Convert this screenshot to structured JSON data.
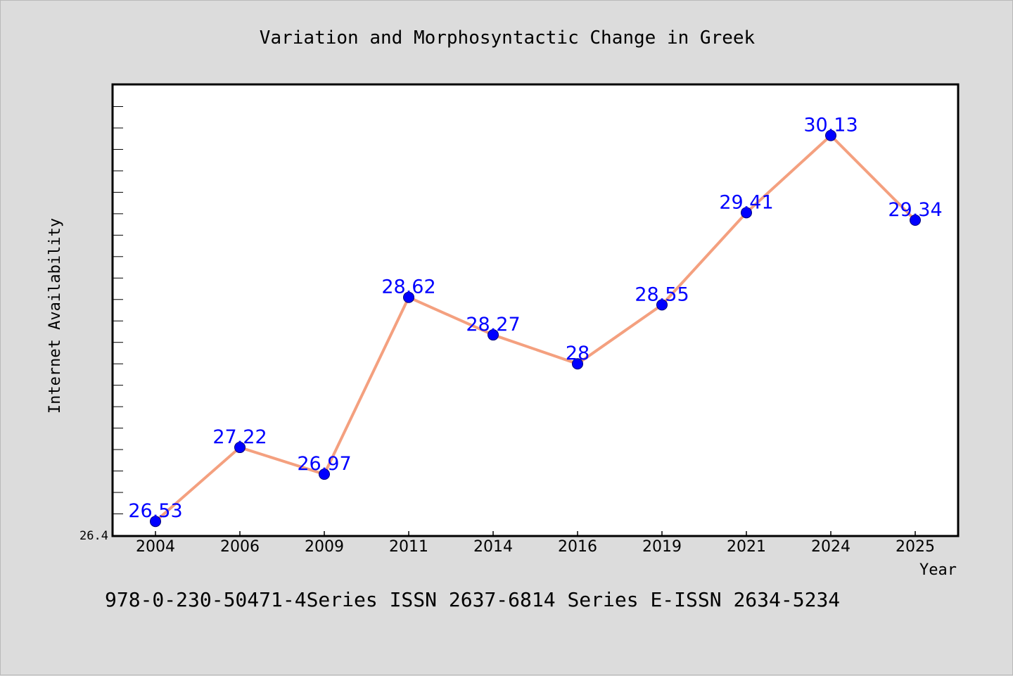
{
  "colors": {
    "background": "#dcdcdc",
    "plot_background": "#ffffff",
    "line": "#f4a07f",
    "marker": "#0000ff",
    "data_label": "#0000ff",
    "text": "#000000"
  },
  "chart_data": {
    "type": "line",
    "title": "Variation and Morphosyntactic Change in Greek",
    "xlabel": "Year",
    "ylabel": "Internet Availability",
    "categories": [
      "2004",
      "2006",
      "2009",
      "2011",
      "2014",
      "2016",
      "2019",
      "2021",
      "2024",
      "2025"
    ],
    "series": [
      {
        "values": [
          26.53,
          27.22,
          26.97,
          28.62,
          28.27,
          28.0,
          28.55,
          29.41,
          30.13,
          29.34
        ],
        "labels": [
          "26.53",
          "27.22",
          "26.97",
          "28.62",
          "28.27",
          "28",
          "28.55",
          "29.41",
          "30.13",
          "29.34"
        ]
      }
    ],
    "ylim": [
      26.4,
      30.6
    ],
    "y_tick_label": "26.4",
    "grid": false,
    "legend": "none"
  },
  "footer": {
    "text": "978-0-230-50471-4Series ISSN 2637-6814 Series E-ISSN 2634-5234"
  }
}
